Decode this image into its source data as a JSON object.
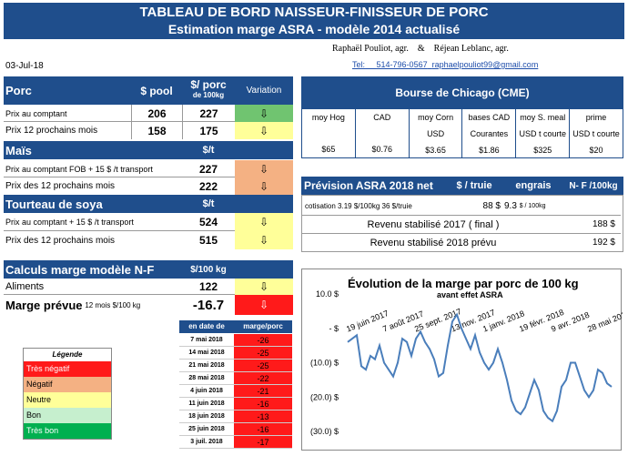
{
  "title": {
    "line1": "TABLEAU DE BORD NAISSEUR-FINISSEUR DE PORC",
    "line2": "Estimation marge ASRA - modèle 2014 actualisé"
  },
  "date": "03-Jul-18",
  "authors": {
    "names": "Raphaël Pouliot, agr.    &    Réjean Leblanc, agr.",
    "tel_label": "Tel:",
    "tel": "514-796-0567",
    "email": "raphaelpouliot99@gmail.com"
  },
  "porc": {
    "header": {
      "label": "Porc",
      "col1": "$ pool",
      "col2": "$/ porc",
      "col2b": "de 100kg",
      "col3": "Variation"
    },
    "rows": [
      {
        "label": "Prix au comptant",
        "pool": "206",
        "val": "227",
        "arrow": "⇩"
      },
      {
        "label": "Prix 12 prochains mois",
        "pool": "158",
        "val": "175",
        "arrow": "⇩"
      }
    ]
  },
  "mais": {
    "header": {
      "label": "Maïs",
      "col": "$/t"
    },
    "rows": [
      {
        "label": "Prix au comptant FOB + 15 $ /t transport",
        "val": "227",
        "arrow": "⇩"
      },
      {
        "label": "Prix des 12 prochains mois",
        "val": "222",
        "arrow": "⇩"
      }
    ]
  },
  "soya": {
    "header": {
      "label": "Tourteau de soya",
      "col": "$/t"
    },
    "rows": [
      {
        "label": "Prix au comptant + 15 $ /t transport",
        "val": "524",
        "arrow": "⇩"
      },
      {
        "label": "Prix des 12 prochains mois",
        "val": "515",
        "arrow": "⇩"
      }
    ]
  },
  "calculs": {
    "header": {
      "label": "Calculs marge  modèle N-F",
      "col": "$/100 kg"
    },
    "aliments": {
      "label": "Aliments",
      "val": "122",
      "arrow": "⇩"
    },
    "marge": {
      "label": "Marge prévue",
      "sub": "12 mois  $/100 kg",
      "val": "-16.7",
      "arrow": "⇩"
    }
  },
  "legend": {
    "title": "Légende",
    "items": [
      "Très négatif",
      "Négatif",
      "Neutre",
      "Bon",
      "Très bon"
    ]
  },
  "history": {
    "col1": "en date de",
    "col2": "marge/porc",
    "rows": [
      {
        "date": "7 mai 2018",
        "val": "-26"
      },
      {
        "date": "14 mai 2018",
        "val": "-25"
      },
      {
        "date": "21 mai 2018",
        "val": "-25"
      },
      {
        "date": "28 mai 2018",
        "val": "-22"
      },
      {
        "date": "4 juin 2018",
        "val": "-21"
      },
      {
        "date": "11 juin 2018",
        "val": "-16"
      },
      {
        "date": "18 juin 2018",
        "val": "-13"
      },
      {
        "date": "25 juin 2018",
        "val": "-16"
      },
      {
        "date": "3 juil. 2018",
        "val": "-17"
      }
    ]
  },
  "cme": {
    "title": "Bourse de Chicago (CME)",
    "cols": [
      {
        "h": "moy Hog",
        "unit": "",
        "val": "$65"
      },
      {
        "h": "CAD",
        "unit": "",
        "val": "$0.76"
      },
      {
        "h": "moy Corn",
        "unit": "USD",
        "val": "$3.65"
      },
      {
        "h": "bases CAD",
        "unit": "Courantes",
        "val": "$1.86"
      },
      {
        "h": "moy S. meal",
        "unit": "USD t courte",
        "val": "$325"
      },
      {
        "h": "prime",
        "unit": "USD t courte",
        "val": "$20"
      }
    ]
  },
  "prevision": {
    "title": "Prévision  ASRA 2018 net",
    "col1": "$ / truie",
    "col2": "engrais",
    "col3": "N- F /100kg",
    "cotisation": "cotisation 3.19 $/100kg  36 $/truie",
    "truie_val": "88  $",
    "engrais_val": "9.3",
    "engrais_unit": "$ / 100kg",
    "rev2017_label": "Revenu stabilisé 2017  ( final )",
    "rev2017_val": "188 $",
    "rev2018_label": "Revenu stabilisé 2018 prévu",
    "rev2018_val": "192 $"
  },
  "chart_data": {
    "type": "line",
    "title": "Évolution de la marge par porc de 100 kg",
    "subtitle": "avant effet ASRA",
    "yticks": [
      "10.0 $",
      "-    $",
      "(10.0) $",
      "(20.0) $",
      "(30.0) $"
    ],
    "ylim": [
      -30,
      10
    ],
    "xticks": [
      "19 juin 2017",
      "7 août 2017",
      "25 sept. 2017",
      "13 nov. 2017",
      "1 janv. 2018",
      "19 févr. 2018",
      "9 avr. 2018",
      "28 mai 2018"
    ],
    "series": [
      {
        "values": [
          -4,
          -3,
          -2,
          -11,
          -12,
          -8,
          -9,
          -5,
          -10,
          -12,
          -14,
          -10,
          -3,
          -4,
          -8,
          -3,
          -1,
          -4,
          -6,
          -9,
          -14,
          -13,
          -5,
          2,
          4,
          0,
          -3,
          -6,
          -2,
          -7,
          -10,
          -12,
          -10,
          -6,
          -10,
          -15,
          -21,
          -24,
          -25,
          -23,
          -19,
          -15,
          -18,
          -24,
          -26,
          -27,
          -24,
          -17,
          -15,
          -10,
          -10,
          -14,
          -18,
          -20,
          -18,
          -12,
          -13,
          -16,
          -17
        ]
      }
    ]
  },
  "colors": {
    "header": "#1f4e8c",
    "very_negative": "#ff1a1a",
    "negative": "#f4b183",
    "neutral": "#ffff99",
    "good": "#c6efce",
    "very_good": "#00b050"
  }
}
